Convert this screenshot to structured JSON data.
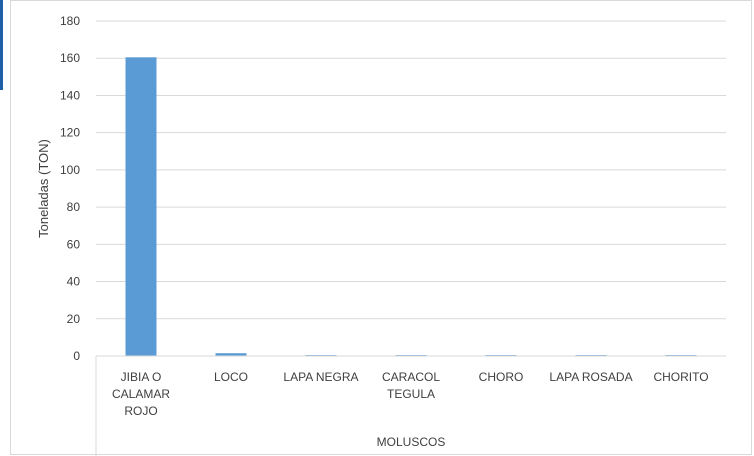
{
  "chart_data": {
    "type": "bar",
    "title": "",
    "ylabel": "Toneladas (TON)",
    "xlabel": "MOLUSCOS",
    "ylim": [
      0,
      180
    ],
    "yticks": [
      0,
      20,
      40,
      60,
      80,
      100,
      120,
      140,
      160,
      180
    ],
    "grid": true,
    "categories": [
      [
        "JIBIA O",
        "CALAMAR",
        "ROJO"
      ],
      [
        "LOCO"
      ],
      [
        "LAPA NEGRA"
      ],
      [
        "CARACOL",
        "TEGULA"
      ],
      [
        "CHORO"
      ],
      [
        "LAPA ROSADA"
      ],
      [
        "CHORITO"
      ]
    ],
    "values": [
      160.5,
      1.5,
      0.5,
      0.5,
      0.5,
      0.5,
      0.5
    ],
    "colors": {
      "bar": "#5b9bd5",
      "grid": "#d9d9d9",
      "text": "#404040"
    }
  }
}
